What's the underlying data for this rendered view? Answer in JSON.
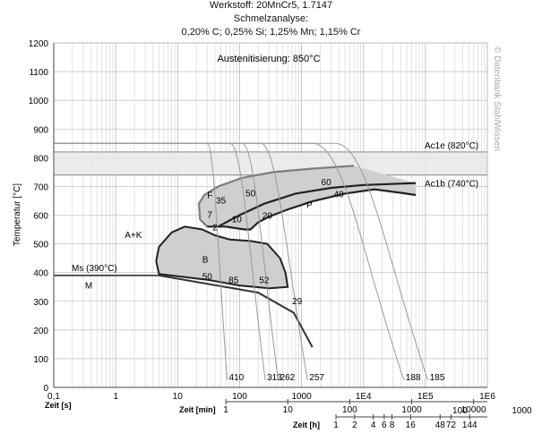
{
  "header": {
    "line1": "Werkstoff: 20MnCr5, 1.7147",
    "line2": "Schmelzanalyse:",
    "line3": "0,20% C; 0,25% Si; 1,25% Mn; 1,15% Cr"
  },
  "watermark": "© Datenbank StahlWissen",
  "chart_data": {
    "type": "line",
    "title": "Austenitisierung: 850°C",
    "ylabel": "Temperatur [°C]",
    "ylim": [
      0,
      1200
    ],
    "yticks": [
      "0",
      "100",
      "200",
      "300",
      "400",
      "500",
      "600",
      "700",
      "800",
      "900",
      "1000",
      "1100",
      "1200"
    ],
    "xscale": "log",
    "xlim": [
      0.1,
      1000000
    ],
    "x_axes": [
      {
        "label": "Zeit [s]",
        "ticks": [
          {
            "t": "0,1",
            "v": 0.1
          },
          {
            "t": "1",
            "v": 1
          },
          {
            "t": "10",
            "v": 10
          },
          {
            "t": "100",
            "v": 100
          },
          {
            "t": "1000",
            "v": 1000
          },
          {
            "t": "1E4",
            "v": 10000
          },
          {
            "t": "1E5",
            "v": 100000
          },
          {
            "t": "1E6",
            "v": 1000000
          }
        ]
      },
      {
        "label": "Zeit [min]",
        "ticks": [
          {
            "t": "1",
            "v": 1
          },
          {
            "t": "10",
            "v": 10
          },
          {
            "t": "100",
            "v": 100
          },
          {
            "t": "1000",
            "v": 1000
          },
          {
            "t": "10000",
            "v": 10000
          }
        ]
      },
      {
        "label": "Zeit [h]",
        "ticks": [
          {
            "t": "1",
            "v": 1
          },
          {
            "t": "2",
            "v": 2
          },
          {
            "t": "4",
            "v": 4
          },
          {
            "t": "6",
            "v": 6
          },
          {
            "t": "8",
            "v": 8
          },
          {
            "t": "16",
            "v": 16
          },
          {
            "t": "48",
            "v": 48
          },
          {
            "t": "72",
            "v": 72
          },
          {
            "t": "144",
            "v": 144
          }
        ],
        "extra": [
          {
            "t": "100",
            "v": 100
          },
          {
            "t": "1000",
            "v": 1000
          }
        ]
      }
    ],
    "reference_lines": [
      {
        "label": "Ac1e (820°C)",
        "y": 820
      },
      {
        "label": "Ac1b (740°C)",
        "y": 740
      },
      {
        "label": "Ms (390°C)",
        "y": 390
      }
    ],
    "regions": [
      {
        "label": "A+K",
        "x": 0.02,
        "y": 513
      },
      {
        "label": "F",
        "x": 0.02,
        "y": 660
      },
      {
        "label": "P",
        "x": 0.02,
        "y": 630
      },
      {
        "label": "B",
        "x": 0.02,
        "y": 438
      },
      {
        "label": "M",
        "x": 0.02,
        "y": 345
      }
    ],
    "region_positions": [
      {
        "label": "A+K",
        "x": 1.4,
        "y": 520
      },
      {
        "label": "F",
        "x": 30,
        "y": 660
      },
      {
        "label": "P",
        "x": 1200,
        "y": 625
      },
      {
        "label": "B",
        "x": 25,
        "y": 435
      },
      {
        "label": "M",
        "x": 0.32,
        "y": 345
      }
    ],
    "cooling_curves": [
      {
        "hardness": "410",
        "start_x": 30,
        "end_x": 63,
        "end_y": 25
      },
      {
        "hardness": "313",
        "start_x": 70,
        "end_x": 260,
        "end_y": 25
      },
      {
        "hardness": "262",
        "start_x": 110,
        "end_x": 420,
        "end_y": 25
      },
      {
        "hardness": "257",
        "start_x": 220,
        "end_x": 1250,
        "end_y": 25
      },
      {
        "hardness": "188",
        "start_x": 1500,
        "end_x": 45000,
        "end_y": 25
      },
      {
        "hardness": "185",
        "start_x": 3500,
        "end_x": 110000,
        "end_y": 25
      }
    ],
    "phase_percentages": [
      {
        "text": "7",
        "x": 33,
        "y": 590
      },
      {
        "text": "35",
        "x": 50,
        "y": 640
      },
      {
        "text": "50",
        "x": 150,
        "y": 665
      },
      {
        "text": "60",
        "x": 2500,
        "y": 705
      },
      {
        "text": "40",
        "x": 4000,
        "y": 662
      },
      {
        "text": "2",
        "x": 40,
        "y": 547
      },
      {
        "text": "10",
        "x": 90,
        "y": 575
      },
      {
        "text": "20",
        "x": 280,
        "y": 588
      },
      {
        "text": "50",
        "x": 30,
        "y": 375
      },
      {
        "text": "85",
        "x": 80,
        "y": 363
      },
      {
        "text": "52",
        "x": 250,
        "y": 363
      },
      {
        "text": "29",
        "x": 850,
        "y": 290
      }
    ]
  }
}
